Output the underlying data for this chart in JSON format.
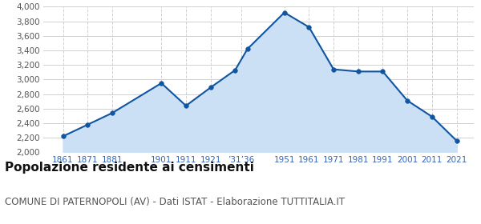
{
  "years": [
    1861,
    1871,
    1881,
    1901,
    1911,
    1921,
    1931,
    1936,
    1951,
    1961,
    1971,
    1981,
    1991,
    2001,
    2011,
    2021
  ],
  "population": [
    2220,
    2380,
    2540,
    2950,
    2640,
    2890,
    3130,
    3420,
    3920,
    3720,
    3140,
    3110,
    3110,
    2710,
    2490,
    2160
  ],
  "xtick_positions": [
    1861,
    1871,
    1881,
    1901,
    1911,
    1921,
    1933.5,
    1951,
    1961,
    1971,
    1981,
    1991,
    2001,
    2011,
    2021
  ],
  "xtick_labels": [
    "1861",
    "1871",
    "1881",
    "1901",
    "1911",
    "1921",
    "’31’36",
    "1951",
    "1961",
    "1971",
    "1981",
    "1991",
    "2001",
    "2011",
    "2021"
  ],
  "line_color": "#1055a0",
  "fill_color": "#cce0f5",
  "marker_color": "#1055a0",
  "ylim": [
    2000,
    4000
  ],
  "xlim": [
    1853,
    2028
  ],
  "yticks": [
    2000,
    2200,
    2400,
    2600,
    2800,
    3000,
    3200,
    3400,
    3600,
    3800,
    4000
  ],
  "ytick_labels": [
    "2,000",
    "2,200",
    "2,400",
    "2,600",
    "2,800",
    "3,000",
    "3,200",
    "3,400",
    "3,600",
    "3,800",
    "4,000"
  ],
  "title": "Popolazione residente ai censimenti",
  "subtitle": "COMUNE DI PATERNOPOLI (AV) - Dati ISTAT - Elaborazione TUTTITALIA.IT",
  "title_fontsize": 11,
  "subtitle_fontsize": 8.5,
  "background_color": "#ffffff",
  "grid_color": "#d0d0d0",
  "xtick_color": "#3366bb",
  "ytick_color": "#555555"
}
